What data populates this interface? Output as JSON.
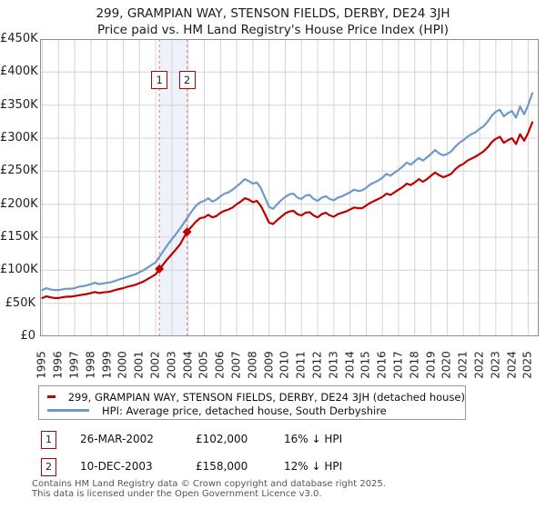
{
  "title": "299, GRAMPIAN WAY, STENSON FIELDS, DERBY, DE24 3JH",
  "subtitle": "Price paid vs. HM Land Registry's House Price Index (HPI)",
  "chart_data": {
    "type": "line",
    "title": "299, GRAMPIAN WAY, STENSON FIELDS, DERBY, DE24 3JH — Price paid vs. HM Land Registry's House Price Index (HPI)",
    "unit": "GBP thousands",
    "grid": true,
    "legend_position": "bottom",
    "xlim": [
      1994.86,
      2025.65
    ],
    "ylim": [
      0,
      450
    ],
    "x_ticks": [
      1995,
      1996,
      1997,
      1998,
      1999,
      2000,
      2001,
      2002,
      2003,
      2004,
      2005,
      2006,
      2007,
      2008,
      2009,
      2010,
      2011,
      2012,
      2013,
      2014,
      2015,
      2016,
      2017,
      2018,
      2019,
      2020,
      2021,
      2022,
      2023,
      2024,
      2025
    ],
    "y_tick_values": [
      0,
      50,
      100,
      150,
      200,
      250,
      300,
      350,
      400,
      450
    ],
    "y_tick_labels": [
      "£0",
      "£50K",
      "£100K",
      "£150K",
      "£200K",
      "£250K",
      "£300K",
      "£350K",
      "£400K",
      "£450K"
    ],
    "band": {
      "from": 2002.23,
      "to": 2003.94,
      "color": "#eef3fb",
      "edge_color": "#ef8a8a"
    },
    "x": [
      1995,
      1995.25,
      1995.5,
      1995.75,
      1996,
      1996.25,
      1996.5,
      1996.75,
      1997,
      1997.25,
      1997.5,
      1997.75,
      1998,
      1998.25,
      1998.5,
      1998.75,
      1999,
      1999.25,
      1999.5,
      1999.75,
      2000,
      2000.25,
      2000.5,
      2000.75,
      2001,
      2001.25,
      2001.5,
      2001.75,
      2002,
      2002.25,
      2002.5,
      2002.75,
      2003,
      2003.25,
      2003.5,
      2003.75,
      2004,
      2004.25,
      2004.5,
      2004.75,
      2005,
      2005.25,
      2005.5,
      2005.75,
      2006,
      2006.25,
      2006.5,
      2006.75,
      2007,
      2007.25,
      2007.5,
      2007.75,
      2008,
      2008.25,
      2008.5,
      2008.75,
      2009,
      2009.25,
      2009.5,
      2009.75,
      2010,
      2010.25,
      2010.5,
      2010.75,
      2011,
      2011.25,
      2011.5,
      2011.75,
      2012,
      2012.25,
      2012.5,
      2012.75,
      2013,
      2013.25,
      2013.5,
      2013.75,
      2014,
      2014.25,
      2014.5,
      2014.75,
      2015,
      2015.25,
      2015.5,
      2015.75,
      2016,
      2016.25,
      2016.5,
      2016.75,
      2017,
      2017.25,
      2017.5,
      2017.75,
      2018,
      2018.25,
      2018.5,
      2018.75,
      2019,
      2019.25,
      2019.5,
      2019.75,
      2020,
      2020.25,
      2020.5,
      2020.75,
      2021,
      2021.25,
      2021.5,
      2021.75,
      2022,
      2022.25,
      2022.5,
      2022.75,
      2023,
      2023.25,
      2023.5,
      2023.75,
      2024,
      2024.25,
      2024.5,
      2024.75,
      2025,
      2025.25
    ],
    "series": [
      {
        "name": "299, GRAMPIAN WAY, STENSON FIELDS, DERBY, DE24 3JH (detached house)",
        "color": "#c00000",
        "values": [
          58,
          60.5,
          59,
          58,
          58,
          59,
          60,
          60,
          61,
          62,
          63,
          64,
          65.5,
          67,
          65.5,
          66.5,
          67,
          68,
          70,
          71.5,
          73,
          75,
          76.5,
          78,
          80.5,
          83,
          86.5,
          90,
          94,
          102,
          110,
          117.5,
          124.5,
          131.5,
          139,
          150,
          160,
          167,
          174,
          179,
          180,
          184,
          180,
          182,
          187,
          190,
          192,
          195,
          200,
          204,
          209,
          207,
          203,
          205,
          197,
          185,
          172,
          170,
          176,
          181,
          186,
          189,
          190,
          185,
          183,
          187,
          188,
          183,
          180,
          185,
          187,
          183,
          181,
          185,
          187,
          189,
          192,
          195,
          194,
          194,
          198,
          202,
          205,
          208,
          211,
          216,
          214,
          218,
          222,
          226,
          231,
          229,
          233,
          238,
          234,
          238,
          243,
          248,
          244,
          241,
          243,
          246,
          253,
          258,
          261,
          266,
          269,
          272,
          276,
          280,
          286,
          294,
          299,
          302,
          293,
          297,
          300,
          291,
          306,
          296,
          308,
          324
        ]
      },
      {
        "name": "HPI: Average price, detached house, South Derbyshire",
        "color": "#6e99c9",
        "values": [
          70,
          73,
          71,
          70,
          70,
          71,
          72,
          72,
          73,
          75,
          76,
          77,
          79,
          81,
          79,
          80,
          81,
          82,
          84,
          86,
          88,
          90,
          92,
          94,
          97,
          100,
          104,
          108,
          112,
          121,
          130,
          139,
          147,
          155,
          163,
          172,
          181,
          190,
          198,
          203,
          205,
          209,
          204,
          207,
          212,
          216,
          218,
          222,
          227,
          232,
          238,
          235,
          231,
          233,
          224,
          210,
          196,
          193,
          200,
          206,
          211,
          215,
          216,
          210,
          208,
          213,
          214,
          208,
          205,
          210,
          212,
          208,
          206,
          210,
          212,
          215,
          218,
          222,
          220,
          221,
          225,
          230,
          233,
          236,
          240,
          246,
          243,
          248,
          252,
          257,
          263,
          260,
          265,
          270,
          266,
          271,
          276,
          282,
          277,
          274,
          276,
          280,
          287,
          293,
          297,
          302,
          306,
          309,
          314,
          318,
          325,
          334,
          340,
          343,
          333,
          338,
          341,
          331,
          348,
          336,
          350,
          368
        ]
      }
    ],
    "sales": [
      {
        "num": "1",
        "year_frac": 2002.23,
        "value_k": 102
      },
      {
        "num": "2",
        "year_frac": 2003.94,
        "value_k": 158
      }
    ]
  },
  "annotations": [
    {
      "num": "1",
      "date": "26-MAR-2002",
      "price": "£102,000",
      "vs_hpi": "16% ↓ HPI"
    },
    {
      "num": "2",
      "date": "10-DEC-2003",
      "price": "£158,000",
      "vs_hpi": "12% ↓ HPI"
    }
  ],
  "footer": {
    "line1": "Contains HM Land Registry data © Crown copyright and database right 2025.",
    "line2": "This data is licensed under the Open Government Licence v3.0."
  }
}
